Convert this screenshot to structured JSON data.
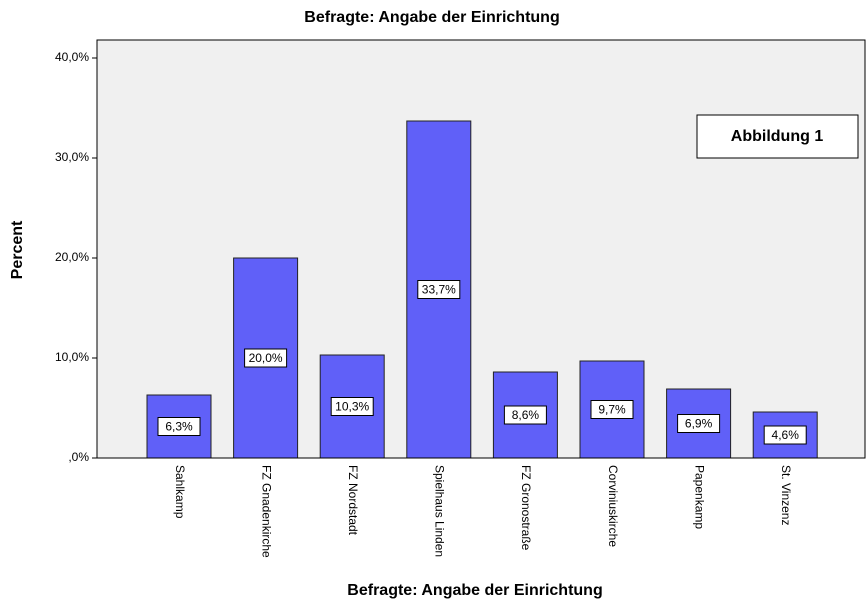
{
  "chart_data": {
    "type": "bar",
    "title": "Befragte: Angabe der Einrichtung",
    "x_label": "Befragte: Angabe der Einrichtung",
    "y_label": "Percent",
    "annotation": "Abbildung 1",
    "categories": [
      "Sahlkamp",
      "FZ Gnadenkirche",
      "FZ Nordstadt",
      "Spielhaus Linden",
      "FZ Gronostraße",
      "Corviniuskirche",
      "Papenkamp",
      "St. Vinzenz"
    ],
    "values": [
      6.3,
      20.0,
      10.3,
      33.7,
      8.6,
      9.7,
      6.9,
      4.6
    ],
    "value_labels": [
      "6,3%",
      "20,0%",
      "10,3%",
      "33,7%",
      "8,6%",
      "9,7%",
      "6,9%",
      "4,6%"
    ],
    "color": "#6060f8",
    "ylim": [
      0,
      41.8
    ],
    "yticks": [
      {
        "value": 0,
        "label": ",0%"
      },
      {
        "value": 10,
        "label": "10,0%"
      },
      {
        "value": 20,
        "label": "20,0%"
      },
      {
        "value": 30,
        "label": "30,0%"
      },
      {
        "value": 40,
        "label": "40,0%"
      }
    ]
  }
}
